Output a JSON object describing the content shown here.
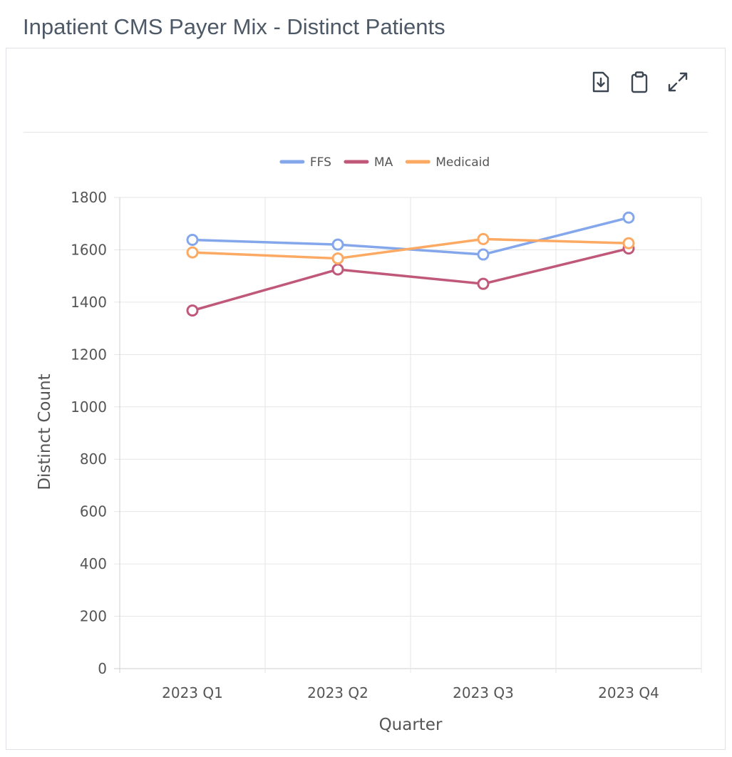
{
  "page": {
    "title": "Inpatient CMS Payer Mix - Distinct Patients"
  },
  "toolbar": {
    "icons": [
      "download-file-icon",
      "clipboard-icon",
      "expand-icon"
    ]
  },
  "chart_data": {
    "type": "line",
    "title": "",
    "xlabel": "Quarter",
    "ylabel": "Distinct Count",
    "categories": [
      "2023 Q1",
      "2023 Q2",
      "2023 Q3",
      "2023 Q4"
    ],
    "ylim": [
      0,
      1800
    ],
    "yticks": [
      "0",
      "200",
      "400",
      "600",
      "800",
      "1000",
      "1200",
      "1400",
      "1600",
      "1800"
    ],
    "grid": true,
    "legend_position": "top-center",
    "series": [
      {
        "name": "FFS",
        "color": "#84a7eb",
        "values": [
          1638,
          1620,
          1582,
          1723
        ]
      },
      {
        "name": "MA",
        "color": "#c0587a",
        "values": [
          1368,
          1525,
          1470,
          1605
        ]
      },
      {
        "name": "Medicaid",
        "color": "#fcaa63",
        "values": [
          1590,
          1567,
          1641,
          1625
        ]
      }
    ]
  }
}
